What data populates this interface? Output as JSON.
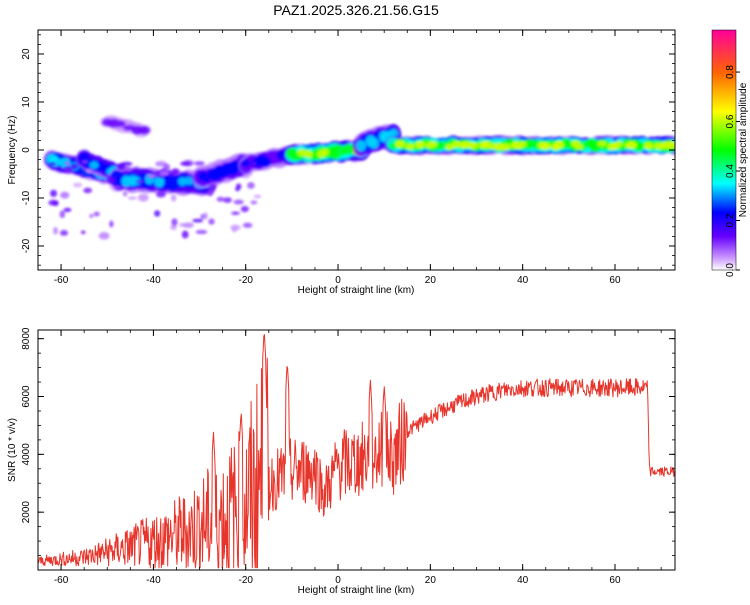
{
  "title": "PAZ1.2025.326.21.56.G15",
  "chart_data": [
    {
      "type": "heatmap",
      "xlabel": "Height of straight line (km)",
      "ylabel": "Frequency (Hz)",
      "xlim": [
        -65,
        73
      ],
      "ylim": [
        -25,
        25
      ],
      "xticks": [
        -60,
        -40,
        -20,
        0,
        20,
        40,
        60
      ],
      "yticks": [
        -20,
        -10,
        0,
        10,
        20
      ],
      "grid": false,
      "colorbar": {
        "label": "Normalized spectral amplitude",
        "range": [
          0,
          0.97
        ],
        "ticks": [
          "0.0",
          "0.2",
          "0.4",
          "0.6",
          "0.8"
        ],
        "colors": [
          "#ffffff",
          "#cc99ff",
          "#6600ff",
          "#0000ff",
          "#00ffff",
          "#00ff00",
          "#ffff00",
          "#ff6600",
          "#ff0099"
        ]
      },
      "features": [
        {
          "x": [
            -62,
            -50
          ],
          "f": [
            -2,
            -5
          ],
          "amp": 0.35,
          "width": 1.5
        },
        {
          "x": [
            -55,
            -45
          ],
          "f": [
            -2,
            -6
          ],
          "amp": 0.3,
          "width": 1.5
        },
        {
          "x": [
            -48,
            -28
          ],
          "f": [
            -6,
            -7
          ],
          "amp": 0.3,
          "width": 2
        },
        {
          "x": [
            -30,
            -20
          ],
          "f": [
            -6,
            -3
          ],
          "amp": 0.25,
          "width": 2
        },
        {
          "x": [
            -50,
            -42
          ],
          "f": [
            6,
            4
          ],
          "amp": 0.15,
          "width": 1
        },
        {
          "x": [
            -20,
            -10
          ],
          "f": [
            -3,
            -1
          ],
          "amp": 0.25,
          "width": 1.5
        },
        {
          "x": [
            -10,
            5
          ],
          "f": [
            -1,
            0
          ],
          "amp": 0.55,
          "width": 1.5
        },
        {
          "x": [
            5,
            12
          ],
          "f": [
            1,
            3
          ],
          "amp": 0.35,
          "width": 2
        },
        {
          "x": [
            12,
            73
          ],
          "f": [
            1,
            1
          ],
          "amp": 0.55,
          "width": 1.2
        }
      ]
    },
    {
      "type": "line",
      "xlabel": "Height of straight line (km)",
      "ylabel": "SNR (10 * v/v)",
      "xlim": [
        -65,
        73
      ],
      "ylim": [
        0,
        8300
      ],
      "xticks": [
        -60,
        -40,
        -20,
        0,
        20,
        40,
        60
      ],
      "yticks": [
        2000,
        4000,
        6000,
        8000
      ],
      "grid": false,
      "color": "#e8352b",
      "series": [
        {
          "x": [
            -65,
            -55,
            -45,
            -40,
            -35,
            -30,
            -25,
            -20,
            -17,
            -15,
            -10,
            -5,
            -3,
            0,
            5,
            10,
            12,
            15,
            20,
            25,
            30,
            35,
            40,
            45,
            50,
            55,
            60,
            65,
            67,
            67.5,
            68,
            70,
            73
          ],
          "y": [
            300,
            450,
            800,
            1000,
            1200,
            1500,
            1800,
            2200,
            3000,
            3000,
            3400,
            3500,
            2600,
            3600,
            3800,
            4200,
            3900,
            4800,
            5300,
            5700,
            6000,
            6200,
            6300,
            6300,
            6300,
            6300,
            6300,
            6300,
            6300,
            3400,
            3400,
            3400,
            3400
          ]
        }
      ],
      "spikes": [
        {
          "x": -16,
          "y": 8300
        },
        {
          "x": -11,
          "y": 7200
        },
        {
          "x": -21,
          "y": 5500
        },
        {
          "x": 7,
          "y": 6600
        },
        {
          "x": 10,
          "y": 6400
        },
        {
          "x": -27,
          "y": 4800
        }
      ]
    }
  ]
}
